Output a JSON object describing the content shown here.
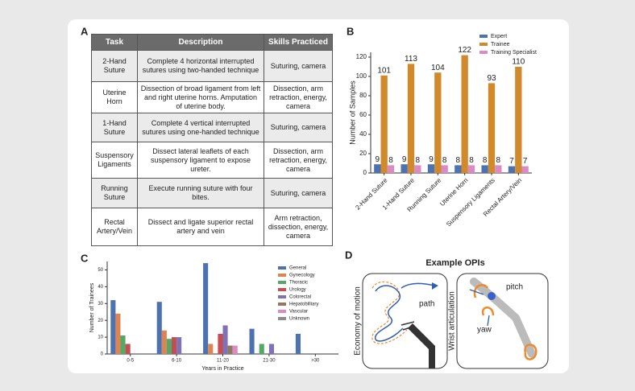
{
  "panels": {
    "a": "A",
    "b": "B",
    "c": "C",
    "d": "D"
  },
  "table": {
    "header": [
      "Task",
      "Description",
      "Skills Practiced"
    ],
    "rows": [
      [
        "2-Hand Suture",
        "Complete 4 horizontal interrupted sutures using two-handed technique",
        "Suturing, camera"
      ],
      [
        "Uterine Horn",
        "Dissection of broad ligament from left and right uterine horns. Amputation of uterine body.",
        "Dissection, arm retraction, energy, camera"
      ],
      [
        "1-Hand Suture",
        "Complete 4 vertical interrupted sutures using one-handed technique",
        "Suturing, camera"
      ],
      [
        "Suspensory Ligaments",
        "Dissect lateral leaflets of each suspensory ligament to expose ureter.",
        "Dissection, arm retraction, energy, camera"
      ],
      [
        "Running Suture",
        "Execute running suture with four bites.",
        "Suturing, camera"
      ],
      [
        "Rectal Artery/Vein",
        "Dissect and ligate superior rectal artery and vein",
        "Arm retraction, dissection, energy, camera"
      ]
    ]
  },
  "chart_data": [
    {
      "type": "bar",
      "ylabel": "Number of Samples",
      "categories": [
        "2-Hand Suture",
        "1-Hand Suture",
        "Running Suture",
        "Uterine Horn",
        "Suspensory Ligaments",
        "Rectal Artery/Vein"
      ],
      "series": [
        {
          "name": "Expert",
          "color": "#4c72b0",
          "values": [
            9,
            9,
            9,
            8,
            8,
            7
          ]
        },
        {
          "name": "Trainee",
          "color": "#d08a2c",
          "values": [
            101,
            113,
            104,
            122,
            93,
            110
          ]
        },
        {
          "name": "Training Specialist",
          "color": "#da8bc3",
          "values": [
            8,
            8,
            8,
            8,
            8,
            7
          ]
        }
      ],
      "ylim": [
        0,
        125
      ],
      "yticks": [
        0,
        20,
        40,
        60,
        80,
        100,
        120
      ],
      "legend": "upper right",
      "data_labels": true,
      "rotate_xlabels": true
    },
    {
      "type": "bar",
      "xlabel": "Years in Practice",
      "ylabel": "Number of Trainees",
      "categories": [
        "0-5",
        "6-10",
        "11-20",
        "21-30",
        ">30"
      ],
      "series": [
        {
          "name": "General",
          "color": "#4c72b0",
          "values": [
            32,
            31,
            54,
            15,
            12
          ]
        },
        {
          "name": "Gynecology",
          "color": "#dd8452",
          "values": [
            24,
            14,
            6,
            0,
            0
          ]
        },
        {
          "name": "Thoracic",
          "color": "#55a868",
          "values": [
            11,
            9,
            0,
            6,
            0
          ]
        },
        {
          "name": "Urology",
          "color": "#c44e52",
          "values": [
            6,
            10,
            12,
            0,
            0
          ]
        },
        {
          "name": "Colorectal",
          "color": "#8172b3",
          "values": [
            0,
            10,
            17,
            6,
            0
          ]
        },
        {
          "name": "Hepatobilliary",
          "color": "#937860",
          "values": [
            0,
            0,
            5,
            0,
            0
          ]
        },
        {
          "name": "Vascular",
          "color": "#da8bc3",
          "values": [
            0,
            0,
            5,
            0,
            0
          ]
        },
        {
          "name": "Unknown",
          "color": "#8c8c8c",
          "values": [
            0,
            0,
            0,
            0,
            0
          ]
        }
      ],
      "ylim": [
        0,
        55
      ],
      "yticks": [
        0,
        10,
        20,
        30,
        40,
        50
      ],
      "legend": "upper right",
      "data_labels": false,
      "rotate_xlabels": false
    }
  ],
  "diagram": {
    "title": "Example OPIs",
    "boxes": [
      {
        "label": "Economy of motion",
        "annotations": [
          "path"
        ]
      },
      {
        "label": "Wrist articulation",
        "annotations": [
          "pitch",
          "yaw"
        ]
      }
    ]
  }
}
